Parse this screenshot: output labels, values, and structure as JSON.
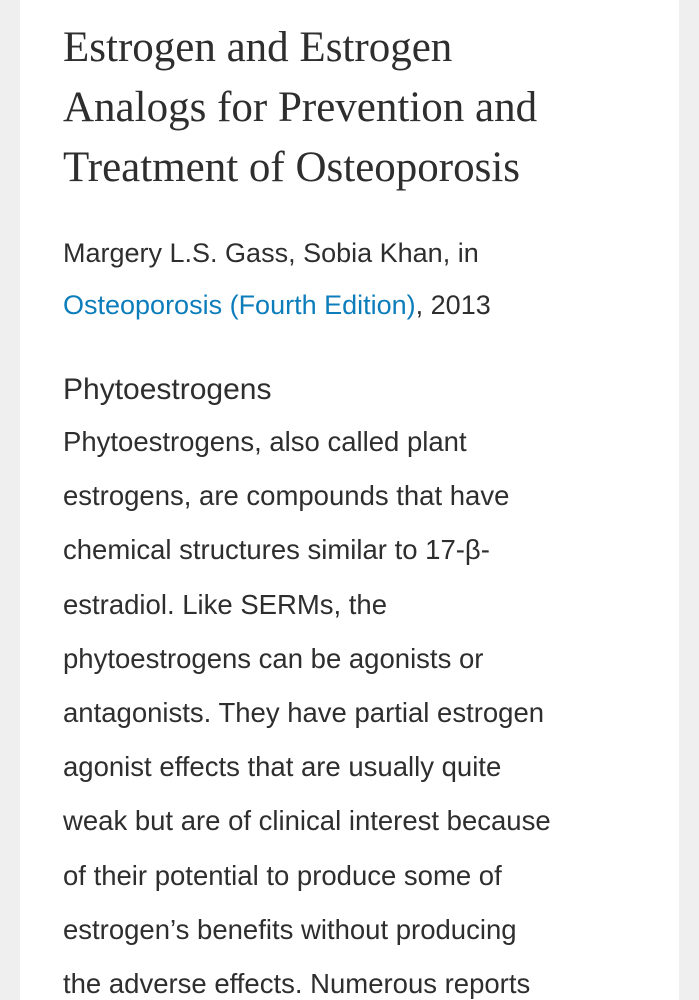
{
  "article": {
    "title_lines": [
      "Estrogen and Estrogen",
      "Analogs for Prevention and",
      "Treatment of Osteoporosis"
    ],
    "byline": "Margery L.S. Gass, Sobia Khan, in",
    "source": "Osteoporosis (Fourth Edition)",
    "source_suffix": ", 2013",
    "section_heading": "Phytoestrogens",
    "paragraph_lines": [
      "Phytoestrogens, also called plant",
      "estrogens, are compounds that have",
      "chemical structures similar to 17-β-",
      "estradiol. Like SERMs, the",
      "phytoestrogens can be agonists or",
      "antagonists. They have partial estrogen",
      "agonist effects that are usually quite",
      "weak but are of clinical interest because",
      "of their potential to produce some of",
      "estrogen’s benefits without producing",
      "the adverse effects. Numerous reports"
    ]
  }
}
